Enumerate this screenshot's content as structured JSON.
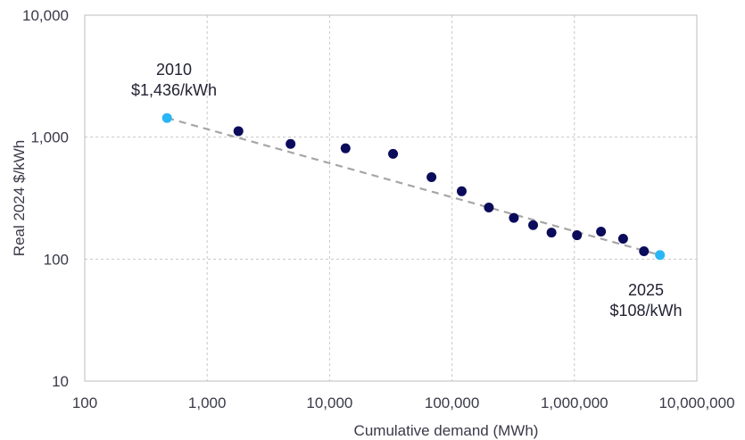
{
  "chart_data": {
    "type": "scatter",
    "title": "",
    "xlabel": "Cumulative demand (MWh)",
    "ylabel": "Real 2024 $/kWh",
    "x_scale": "log",
    "y_scale": "log",
    "xlim": [
      100,
      10000000
    ],
    "ylim": [
      10,
      10000
    ],
    "x_ticks": [
      100,
      1000,
      10000,
      100000,
      1000000,
      10000000
    ],
    "x_tick_labels": [
      "100",
      "1,000",
      "10,000",
      "100,000",
      "1,000,000",
      "10,000,000"
    ],
    "y_ticks": [
      10,
      100,
      1000,
      10000
    ],
    "y_tick_labels": [
      "10",
      "100",
      "1,000",
      "10,000"
    ],
    "grid": true,
    "colors": {
      "observed": "#0b0b5c",
      "endpoint": "#29b6f6",
      "trend": "#a6a6a6"
    },
    "series": [
      {
        "points": [
          {
            "x": 1800,
            "y": 1120
          },
          {
            "x": 4800,
            "y": 880
          },
          {
            "x": 13500,
            "y": 810
          },
          {
            "x": 33000,
            "y": 730
          },
          {
            "x": 68000,
            "y": 470
          },
          {
            "x": 120000,
            "y": 360
          },
          {
            "x": 200000,
            "y": 265
          },
          {
            "x": 320000,
            "y": 218
          },
          {
            "x": 460000,
            "y": 190
          },
          {
            "x": 650000,
            "y": 165
          },
          {
            "x": 1050000,
            "y": 157
          },
          {
            "x": 1650000,
            "y": 168
          },
          {
            "x": 2500000,
            "y": 147
          },
          {
            "x": 3700000,
            "y": 116
          }
        ]
      },
      {
        "points": [
          {
            "x": 470,
            "y": 1436
          },
          {
            "x": 5000000,
            "y": 108
          }
        ]
      }
    ],
    "trendline": {
      "from": {
        "x": 470,
        "y": 1436
      },
      "to": {
        "x": 5000000,
        "y": 108
      }
    },
    "annotations": [
      {
        "year": "2010",
        "value": "$1,436/kWh"
      },
      {
        "year": "2025",
        "value": "$108/kWh"
      }
    ]
  }
}
